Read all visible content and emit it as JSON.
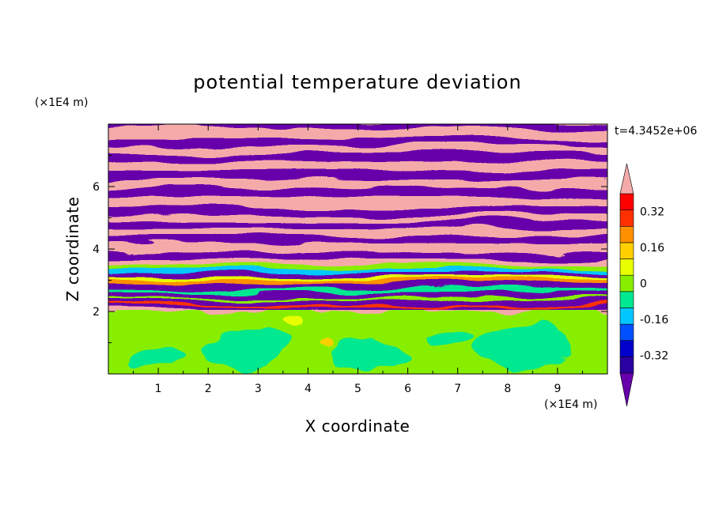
{
  "chart_data": {
    "type": "heatmap",
    "title": "potential temperature deviation",
    "xlabel": "X coordinate",
    "ylabel": "Z coordinate",
    "x_unit": "(×1E4 m)",
    "y_unit": "(×1E4 m)",
    "time_label": "t=4.3452e+06",
    "xlim": [
      0,
      10
    ],
    "ylim": [
      0,
      8
    ],
    "x_ticks": [
      "1",
      "2",
      "3",
      "4",
      "5",
      "6",
      "7",
      "8",
      "9"
    ],
    "y_ticks": [
      "2",
      "4",
      "6"
    ],
    "colorbar": {
      "levels": [
        -0.48,
        -0.4,
        -0.32,
        -0.24,
        -0.16,
        -0.08,
        0,
        0.08,
        0.16,
        0.24,
        0.32,
        0.4,
        0.48
      ],
      "labels": [
        "0.32",
        "0.16",
        "0",
        "-0.16",
        "-0.32"
      ],
      "label_values": [
        0.32,
        0.16,
        0,
        -0.16,
        -0.32
      ],
      "colors": [
        "#6600aa",
        "#2b00a0",
        "#0000cc",
        "#0050ff",
        "#00c8ff",
        "#00e890",
        "#88ee00",
        "#e8ff00",
        "#ffd000",
        "#ff9000",
        "#ff3000",
        "#ff0000",
        "#f5aaaa"
      ],
      "extend": "both",
      "under_color": "#6600aa",
      "over_color": "#f5aaaa"
    }
  }
}
